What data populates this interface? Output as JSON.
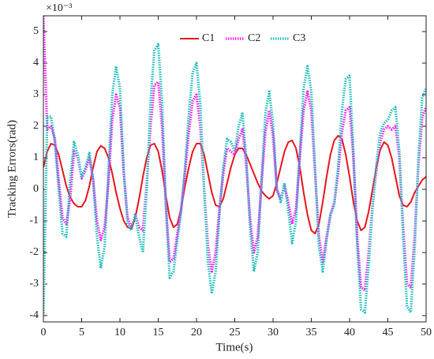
{
  "chart_data": {
    "type": "line",
    "xlabel": "Time(s)",
    "ylabel": "Tracking Errors(rad)",
    "annotation": "×10⁻³",
    "xlim": [
      0,
      50
    ],
    "xticks": [
      0,
      5,
      10,
      15,
      20,
      25,
      30,
      35,
      40,
      45,
      50
    ],
    "ylim": [
      -4.2,
      5.5
    ],
    "yticks": [
      -4,
      -3,
      -2,
      -1,
      0,
      1,
      2,
      3,
      4,
      5
    ],
    "legend": "top",
    "x": [
      0,
      0.5,
      1,
      1.5,
      2,
      2.5,
      3,
      3.5,
      4,
      4.5,
      5,
      5.5,
      6,
      6.5,
      7,
      7.5,
      8,
      8.5,
      9,
      9.5,
      10,
      10.5,
      11,
      11.5,
      12,
      12.5,
      13,
      13.5,
      14,
      14.5,
      15,
      15.5,
      16,
      16.5,
      17,
      17.5,
      18,
      18.5,
      19,
      19.5,
      20,
      20.5,
      21,
      21.5,
      22,
      22.5,
      23,
      23.5,
      24,
      24.5,
      25,
      25.5,
      26,
      26.5,
      27,
      27.5,
      28,
      28.5,
      29,
      29.5,
      30,
      30.5,
      31,
      31.5,
      32,
      32.5,
      33,
      33.5,
      34,
      34.5,
      35,
      35.5,
      36,
      36.5,
      37,
      37.5,
      38,
      38.5,
      39,
      39.5,
      40,
      40.5,
      41,
      41.5,
      42,
      42.5,
      43,
      43.5,
      44,
      44.5,
      45,
      45.5,
      46,
      46.5,
      47,
      47.5,
      48,
      48.5,
      49,
      49.5,
      50
    ],
    "series": [
      {
        "name": "C1",
        "color": "#e8141c",
        "style": "solid",
        "values": [
          0.7,
          1.2,
          1.45,
          1.4,
          1.1,
          0.6,
          0.1,
          -0.25,
          -0.45,
          -0.55,
          -0.55,
          -0.35,
          0.1,
          0.7,
          1.2,
          1.38,
          1.3,
          1.0,
          0.5,
          -0.1,
          -0.6,
          -1.0,
          -1.2,
          -1.25,
          -0.9,
          -0.3,
          0.4,
          1.0,
          1.4,
          1.45,
          1.2,
          0.6,
          -0.2,
          -0.9,
          -1.2,
          -1.1,
          -0.6,
          0.1,
          0.7,
          1.2,
          1.45,
          1.45,
          1.1,
          0.5,
          -0.1,
          -0.5,
          -0.55,
          -0.3,
          0.2,
          0.7,
          1.1,
          1.3,
          1.3,
          1.1,
          0.8,
          0.5,
          0.2,
          -0.05,
          -0.2,
          -0.3,
          -0.2,
          0.2,
          0.7,
          1.2,
          1.5,
          1.55,
          1.3,
          0.7,
          -0.1,
          -0.8,
          -1.3,
          -1.4,
          -1.1,
          -0.4,
          0.4,
          1.1,
          1.55,
          1.7,
          1.6,
          1.1,
          0.4,
          -0.4,
          -1.0,
          -1.3,
          -1.2,
          -0.7,
          0.0,
          0.7,
          1.25,
          1.5,
          1.4,
          1.0,
          0.4,
          -0.2,
          -0.5,
          -0.55,
          -0.4,
          -0.1,
          0.1,
          0.3,
          0.4
        ]
      },
      {
        "name": "C2",
        "color": "#ff1aff",
        "style": "dotted",
        "values": [
          5.5,
          1.9,
          2.0,
          1.6,
          0.3,
          -0.9,
          -1.1,
          -0.3,
          1.2,
          1.0,
          0.35,
          0.6,
          1.0,
          0.3,
          -1.0,
          -1.6,
          -1.2,
          0.2,
          2.2,
          3.0,
          2.6,
          0.5,
          -0.9,
          -1.2,
          -0.8,
          -1.2,
          -1.3,
          0.2,
          2.0,
          3.3,
          3.4,
          2.0,
          -0.5,
          -2.3,
          -2.2,
          -1.4,
          -0.6,
          0.5,
          1.8,
          2.8,
          3.0,
          2.0,
          0.0,
          -1.8,
          -2.6,
          -2.0,
          -0.6,
          0.5,
          1.3,
          1.2,
          1.1,
          1.6,
          1.9,
          0.8,
          -0.9,
          -2.0,
          -1.5,
          0.2,
          1.8,
          2.5,
          1.7,
          0.0,
          -0.3,
          0.1,
          -0.4,
          -1.1,
          -0.6,
          1.0,
          2.5,
          3.1,
          2.5,
          0.5,
          -1.5,
          -2.3,
          -1.5,
          -0.8,
          -0.4,
          0.5,
          1.8,
          2.5,
          2.6,
          1.0,
          -1.5,
          -3.1,
          -3.2,
          -2.0,
          -0.5,
          0.6,
          1.5,
          1.9,
          2.0,
          1.9,
          2.0,
          1.0,
          -1.2,
          -3.0,
          -3.1,
          -1.5,
          0.8,
          2.3,
          2.6
        ]
      },
      {
        "name": "C3",
        "color": "#1fbcbc",
        "style": "dotted",
        "values": [
          -4.0,
          2.3,
          2.3,
          1.5,
          0.0,
          -1.4,
          -1.5,
          0.3,
          1.5,
          1.1,
          0.4,
          0.7,
          1.15,
          0.3,
          -1.5,
          -2.5,
          -1.8,
          0.6,
          3.0,
          3.9,
          3.2,
          0.6,
          -1.1,
          -1.3,
          -0.8,
          -1.5,
          -2.0,
          0.0,
          2.8,
          4.4,
          4.6,
          2.8,
          -0.5,
          -2.8,
          -2.6,
          -1.6,
          -0.7,
          0.7,
          2.4,
          3.7,
          4.0,
          2.7,
          0.0,
          -2.3,
          -3.3,
          -2.6,
          -0.8,
          0.7,
          1.6,
          1.5,
          1.2,
          2.0,
          2.4,
          1.0,
          -1.2,
          -2.6,
          -2.0,
          0.3,
          2.4,
          3.1,
          2.1,
          0.0,
          -0.4,
          0.2,
          -0.7,
          -1.7,
          -1.0,
          1.2,
          3.2,
          3.9,
          3.1,
          0.6,
          -1.8,
          -2.6,
          -1.6,
          -0.8,
          -0.5,
          0.7,
          2.5,
          3.5,
          3.6,
          1.2,
          -1.8,
          -3.8,
          -3.9,
          -2.4,
          -0.6,
          0.8,
          1.8,
          2.1,
          2.2,
          2.5,
          2.6,
          1.2,
          -1.5,
          -3.7,
          -3.9,
          -1.9,
          1.0,
          2.9,
          3.2
        ]
      }
    ]
  }
}
